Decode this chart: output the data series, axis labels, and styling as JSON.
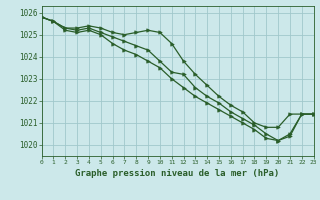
{
  "title": "Graphe pression niveau de la mer (hPa)",
  "bg_color": "#cce8ea",
  "grid_color": "#a0c8cc",
  "line_color": "#2a5e2a",
  "marker_color": "#2a5e2a",
  "xlim": [
    0,
    23
  ],
  "ylim": [
    1019.5,
    1026.3
  ],
  "yticks": [
    1020,
    1021,
    1022,
    1023,
    1024,
    1025,
    1026
  ],
  "xticks": [
    0,
    1,
    2,
    3,
    4,
    5,
    6,
    7,
    8,
    9,
    10,
    11,
    12,
    13,
    14,
    15,
    16,
    17,
    18,
    19,
    20,
    21,
    22,
    23
  ],
  "series1": [
    1025.8,
    1025.6,
    1025.3,
    1025.3,
    1025.4,
    1025.3,
    1025.1,
    1025.0,
    1025.1,
    1025.2,
    1025.1,
    1024.6,
    1023.8,
    1023.2,
    1022.7,
    1022.2,
    1021.8,
    1021.5,
    1021.0,
    1020.8,
    1020.8,
    1021.4,
    1021.4,
    1021.4
  ],
  "series2": [
    1025.8,
    1025.6,
    1025.3,
    1025.2,
    1025.3,
    1025.1,
    1024.9,
    1024.7,
    1024.5,
    1024.3,
    1023.8,
    1023.3,
    1023.2,
    1022.6,
    1022.2,
    1021.9,
    1021.5,
    1021.2,
    1020.9,
    1020.5,
    1020.2,
    1020.5,
    1021.4,
    1021.4
  ],
  "series3": [
    1025.8,
    1025.6,
    1025.2,
    1025.1,
    1025.2,
    1025.0,
    1024.6,
    1024.3,
    1024.1,
    1023.8,
    1023.5,
    1023.0,
    1022.6,
    1022.2,
    1021.9,
    1021.6,
    1021.3,
    1021.0,
    1020.7,
    1020.3,
    1020.2,
    1020.4,
    1021.4,
    1021.4
  ]
}
